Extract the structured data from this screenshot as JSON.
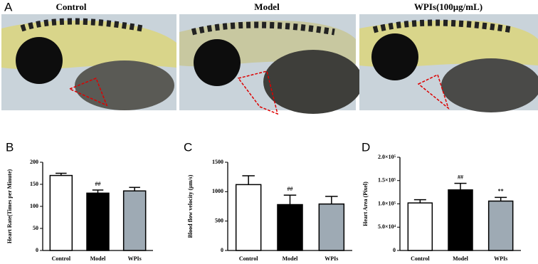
{
  "panel_a": {
    "label": "A",
    "titles": [
      "Control",
      "Model",
      "WPIs(100μg/mL)"
    ]
  },
  "chart_data": [
    {
      "type": "bar",
      "label": "B",
      "y_label": "Heart Rate(Times per Minute)",
      "categories": [
        "Control",
        "Model",
        "WPIs"
      ],
      "values": [
        170,
        130,
        135
      ],
      "errors": [
        5,
        7,
        8
      ],
      "significance": [
        null,
        "##",
        null
      ],
      "colors": [
        "#ffffff",
        "#000000",
        "#9eaab4"
      ],
      "ylim": [
        0,
        200
      ],
      "yticks": [
        0,
        50,
        100,
        150,
        200
      ]
    },
    {
      "type": "bar",
      "label": "C",
      "y_label": "Blood flow velocity (μm/s)",
      "categories": [
        "Control",
        "Model",
        "WPIs"
      ],
      "values": [
        1120,
        780,
        790
      ],
      "errors": [
        150,
        160,
        130
      ],
      "significance": [
        null,
        "##",
        null
      ],
      "colors": [
        "#ffffff",
        "#000000",
        "#9eaab4"
      ],
      "ylim": [
        0,
        1500
      ],
      "yticks": [
        0,
        500,
        1000,
        1500
      ]
    },
    {
      "type": "bar",
      "label": "D",
      "y_label": "Heart Area (Pixel)",
      "categories": [
        "Control",
        "Model",
        "WPIs"
      ],
      "values": [
        102000,
        130000,
        106000
      ],
      "errors": [
        7000,
        14000,
        8000
      ],
      "significance": [
        null,
        "##",
        "**"
      ],
      "colors": [
        "#ffffff",
        "#000000",
        "#9eaab4"
      ],
      "ylim": [
        0,
        200000
      ],
      "yticks": [
        0,
        {
          "value": 50000,
          "label": "5.0×10⁴"
        },
        {
          "value": 100000,
          "label": "1.0×10⁵"
        },
        {
          "value": 150000,
          "label": "1.5×10⁵"
        },
        {
          "value": 200000,
          "label": "2.0×10⁵"
        }
      ]
    }
  ]
}
